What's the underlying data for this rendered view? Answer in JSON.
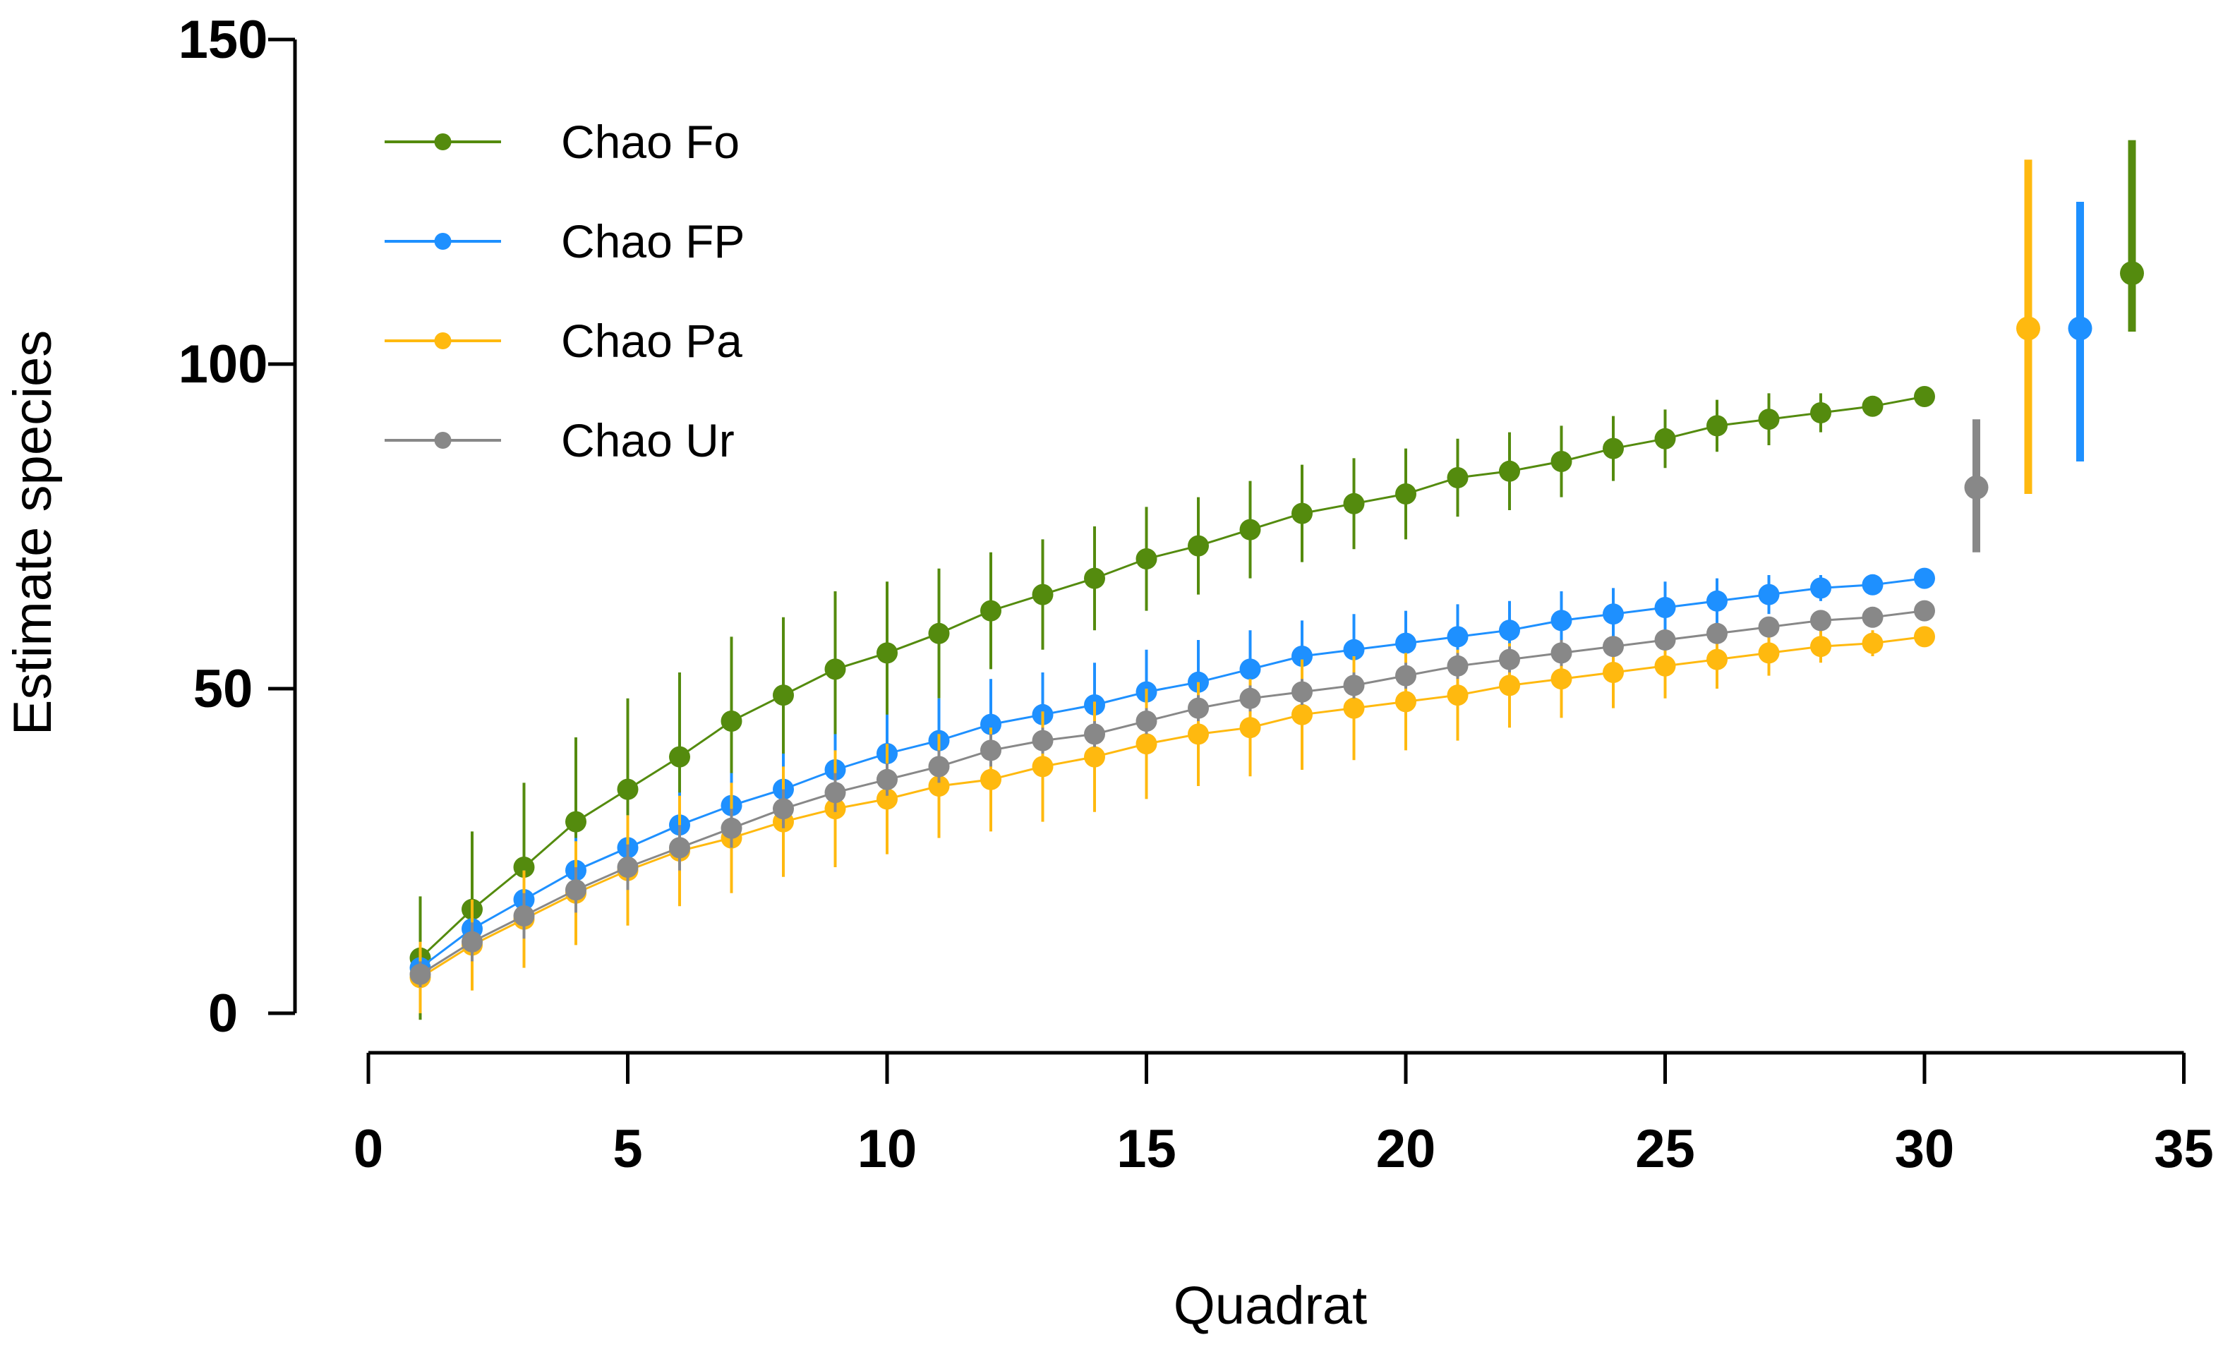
{
  "chart_data": {
    "type": "line",
    "xlabel": "Quadrat",
    "ylabel": "Estimate species",
    "xlim": [
      0,
      35
    ],
    "ylim": [
      0,
      150
    ],
    "xticks": [
      0,
      5,
      10,
      15,
      20,
      25,
      30,
      35
    ],
    "yticks": [
      0,
      50,
      100,
      150
    ],
    "legend_position": "top-left",
    "series": [
      {
        "name": "Chao Fo",
        "color": "#548B0E",
        "x": [
          1,
          2,
          3,
          4,
          5,
          6,
          7,
          8,
          9,
          10,
          11,
          12,
          13,
          14,
          15,
          16,
          17,
          18,
          19,
          20,
          21,
          22,
          23,
          24,
          25,
          26,
          27,
          28,
          29,
          30
        ],
        "values": [
          8.5,
          16,
          22.5,
          29.5,
          34.5,
          39.5,
          45,
          49,
          53,
          55.5,
          58.5,
          62,
          64.5,
          67,
          70,
          72,
          74.5,
          77,
          78.5,
          80,
          82.5,
          83.5,
          85,
          87,
          88.5,
          90.5,
          91.5,
          92.5,
          93.5,
          95
        ],
        "err": [
          9.5,
          12,
          13,
          13,
          14,
          13,
          13,
          12,
          12,
          11,
          10,
          9,
          8.5,
          8,
          8,
          7.5,
          7.5,
          7.5,
          7,
          7,
          6,
          6,
          5.5,
          5,
          4.5,
          4,
          4,
          3,
          1.5,
          1
        ]
      },
      {
        "name": "Chao FP",
        "color": "#1E90FF",
        "x": [
          1,
          2,
          3,
          4,
          5,
          6,
          7,
          8,
          9,
          10,
          11,
          12,
          13,
          14,
          15,
          16,
          17,
          18,
          19,
          20,
          21,
          22,
          23,
          24,
          25,
          26,
          27,
          28,
          29,
          30
        ],
        "values": [
          7,
          13,
          17.5,
          22,
          25.5,
          29,
          32,
          34.5,
          37.5,
          40,
          42,
          44.5,
          46,
          47.5,
          49.5,
          51,
          53,
          55,
          56,
          57,
          58,
          59,
          60.5,
          61.5,
          62.5,
          63.5,
          64.5,
          65.5,
          66,
          67
        ],
        "err": [
          3,
          4,
          4.5,
          5,
          5,
          5,
          5,
          5.5,
          5.5,
          6,
          6.5,
          7,
          6.5,
          6.5,
          6.5,
          6.5,
          6,
          5.5,
          5.5,
          5,
          5,
          4.5,
          4.5,
          4,
          4,
          3.5,
          3,
          2,
          1.5,
          1
        ]
      },
      {
        "name": "Chao Pa",
        "color": "#FFB90F",
        "x": [
          1,
          2,
          3,
          4,
          5,
          6,
          7,
          8,
          9,
          10,
          11,
          12,
          13,
          14,
          15,
          16,
          17,
          18,
          19,
          20,
          21,
          22,
          23,
          24,
          25,
          26,
          27,
          28,
          29,
          30
        ],
        "values": [
          5.5,
          10.5,
          14.5,
          18.5,
          22,
          25,
          27,
          29.5,
          31.5,
          33,
          35,
          36,
          38,
          39.5,
          41.5,
          43,
          44,
          46,
          47,
          48,
          49,
          50.5,
          51.5,
          52.5,
          53.5,
          54.5,
          55.5,
          56.5,
          57,
          58
        ],
        "err": [
          5.5,
          7,
          7.5,
          8,
          8.5,
          8.5,
          8.5,
          8.5,
          9,
          8.5,
          8,
          8,
          8.5,
          8.5,
          8.5,
          8,
          7.5,
          8.5,
          8,
          7.5,
          7,
          6.5,
          6,
          5.5,
          5,
          4.5,
          3.5,
          2.5,
          2,
          1.5
        ]
      },
      {
        "name": "Chao Ur",
        "color": "#888888",
        "x": [
          1,
          2,
          3,
          4,
          5,
          6,
          7,
          8,
          9,
          10,
          11,
          12,
          13,
          14,
          15,
          16,
          17,
          18,
          19,
          20,
          21,
          22,
          23,
          24,
          25,
          26,
          27,
          28,
          29,
          30
        ],
        "values": [
          6,
          11,
          15,
          19,
          22.5,
          25.5,
          28.5,
          31.5,
          34,
          36,
          38,
          40.5,
          42,
          43,
          45,
          47,
          48.5,
          49.5,
          50.5,
          52,
          53.5,
          54.5,
          55.5,
          56.5,
          57.5,
          58.5,
          59.5,
          60.5,
          61,
          62
        ],
        "err": [
          2,
          3,
          3.5,
          3.5,
          3.5,
          3.5,
          3,
          3,
          3,
          2.5,
          2.5,
          2.5,
          2,
          2,
          2,
          2,
          2,
          2,
          2,
          2,
          2,
          2,
          2,
          1.5,
          1.5,
          1.5,
          1.5,
          1,
          1,
          1
        ]
      }
    ],
    "final_estimates": [
      {
        "name": "Chao Ur",
        "color": "#888888",
        "x": 31,
        "value": 81,
        "low": 71,
        "high": 91.5
      },
      {
        "name": "Chao Pa",
        "color": "#FFB90F",
        "x": 32,
        "value": 105.5,
        "low": 80,
        "high": 131.5
      },
      {
        "name": "Chao FP",
        "color": "#1E90FF",
        "x": 33,
        "value": 105.5,
        "low": 85,
        "high": 125
      },
      {
        "name": "Chao Fo",
        "color": "#548B0E",
        "x": 34,
        "value": 114,
        "low": 105,
        "high": 134.5
      }
    ]
  }
}
